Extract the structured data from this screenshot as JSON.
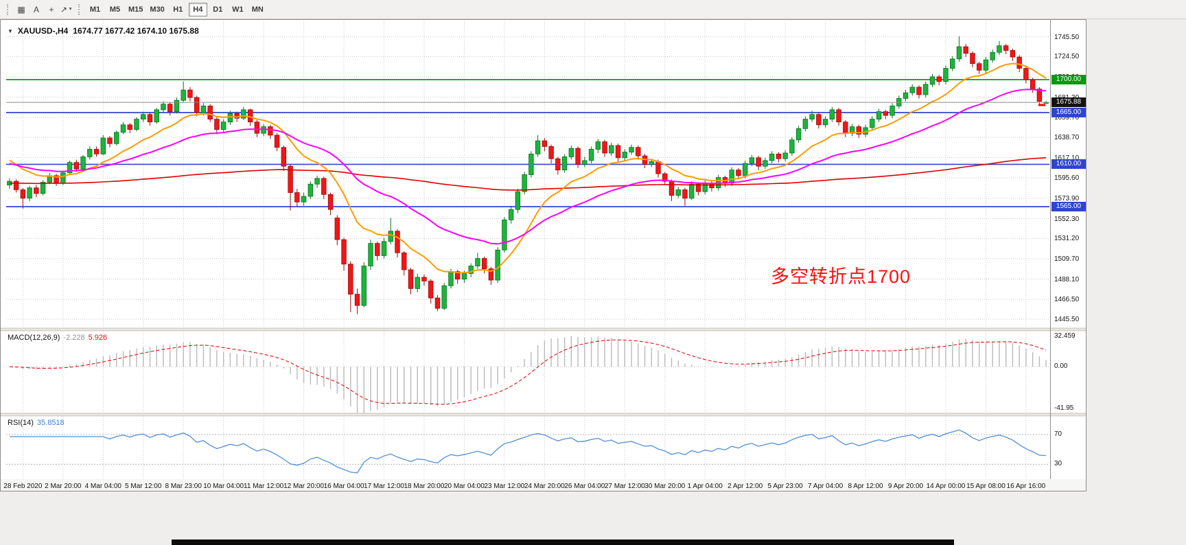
{
  "toolbar": {
    "left_icons": [
      {
        "name": "chart-grid-icon",
        "glyph": "▦"
      },
      {
        "name": "text-tool-icon",
        "glyph": "A"
      },
      {
        "name": "crosshair-icon",
        "glyph": "+"
      },
      {
        "name": "draw-tools-icon",
        "glyph": "↗",
        "caret": "▼"
      }
    ],
    "timeframes": [
      "M1",
      "M5",
      "M15",
      "M30",
      "H1",
      "H4",
      "D1",
      "W1",
      "MN"
    ],
    "active_timeframe": "H4"
  },
  "chart": {
    "title_marker": "▼",
    "title_symbol": "XAUUSD-,H4",
    "title_ohlc": "1674.77 1677.42 1674.10 1675.88",
    "annotation": {
      "text": "多空转折点1700",
      "color": "#fe1010"
    },
    "current_price": "1675.88",
    "current_price_value": 1675.88,
    "price_marker": {
      "price": 1673.0,
      "color": "#ff0000"
    },
    "colors": {
      "up_fill": "#1cb53a",
      "up_stroke": "#0a7022",
      "down_fill": "#f21616",
      "down_stroke": "#9c0b0b",
      "grid": "#c9c9c9",
      "current_line": "#8a8a8a",
      "tag_current_bg": "#131313",
      "macd_hist": "#b9b9b9",
      "macd_signal": "#e01010",
      "rsi_line": "#4f8fd9"
    },
    "hlines": [
      {
        "price": 1700.0,
        "label": "1700.00",
        "color": "#00a000",
        "tag_bg": "#089b08"
      },
      {
        "price": 1665.0,
        "label": "1665.00",
        "color": "#2f45cf",
        "tag_bg": "#2f45cf"
      },
      {
        "price": 1610.0,
        "label": "1610.00",
        "color": "#2f45cf",
        "tag_bg": "#2f45cf"
      },
      {
        "price": 1565.0,
        "label": "1565.00",
        "color": "#2f45cf",
        "tag_bg": "#2f45cf"
      }
    ],
    "y_axis_labels": [
      "1745.50",
      "1724.50",
      "1702.90",
      "1681.30",
      "1659.70",
      "1638.70",
      "1617.10",
      "1595.60",
      "1573.90",
      "1552.30",
      "1531.20",
      "1509.70",
      "1488.10",
      "1466.50",
      "1445.50"
    ]
  },
  "chart_data": {
    "type": "candlestick",
    "symbol": "XAUUSD",
    "timeframe": "H4",
    "y_range": [
      1436,
      1762
    ],
    "label_start_index": 2,
    "label_every": 6,
    "x_labels": [
      "28 Feb 2020",
      "2 Mar 20:00",
      "4 Mar 04:00",
      "5 Mar 12:00",
      "8 Mar 23:00",
      "10 Mar 04:00",
      "11 Mar 12:00",
      "12 Mar 20:00",
      "16 Mar 04:00",
      "17 Mar 12:00",
      "18 Mar 20:00",
      "20 Mar 04:00",
      "23 Mar 12:00",
      "24 Mar 20:00",
      "26 Mar 04:00",
      "27 Mar 12:00",
      "30 Mar 20:00",
      "1 Apr 04:00",
      "2 Apr 12:00",
      "5 Apr 23:00",
      "7 Apr 04:00",
      "8 Apr 12:00",
      "9 Apr 20:00",
      "14 Apr 00:00",
      "15 Apr 08:00",
      "16 Apr 16:00"
    ],
    "moving_averages": [
      {
        "period": 240,
        "seed": 1590,
        "color": "#dd0000",
        "width": 1.6
      },
      {
        "period": 13,
        "seed": 1618,
        "color": "#ff9c00",
        "width": 2
      },
      {
        "period": 34,
        "seed": 1612,
        "color": "#ff00ff",
        "width": 2
      }
    ],
    "candles": [
      [
        1588,
        1595,
        1584,
        1592
      ],
      [
        1592,
        1594,
        1580,
        1583
      ],
      [
        1583,
        1585,
        1563,
        1574
      ],
      [
        1574,
        1587,
        1571,
        1585
      ],
      [
        1585,
        1588,
        1575,
        1579
      ],
      [
        1579,
        1593,
        1577,
        1591
      ],
      [
        1591,
        1601,
        1589,
        1598
      ],
      [
        1598,
        1600,
        1587,
        1590
      ],
      [
        1590,
        1603,
        1588,
        1601
      ],
      [
        1601,
        1614,
        1599,
        1612
      ],
      [
        1612,
        1615,
        1602,
        1605
      ],
      [
        1605,
        1620,
        1603,
        1618
      ],
      [
        1618,
        1629,
        1615,
        1626
      ],
      [
        1626,
        1629,
        1618,
        1621
      ],
      [
        1621,
        1641,
        1620,
        1638
      ],
      [
        1638,
        1640,
        1628,
        1632
      ],
      [
        1632,
        1646,
        1630,
        1644
      ],
      [
        1644,
        1655,
        1642,
        1652
      ],
      [
        1652,
        1654,
        1643,
        1647
      ],
      [
        1647,
        1660,
        1645,
        1658
      ],
      [
        1658,
        1666,
        1655,
        1663
      ],
      [
        1663,
        1665,
        1651,
        1655
      ],
      [
        1655,
        1670,
        1653,
        1668
      ],
      [
        1668,
        1677,
        1665,
        1674
      ],
      [
        1674,
        1676,
        1662,
        1666
      ],
      [
        1666,
        1681,
        1664,
        1678
      ],
      [
        1678,
        1698,
        1676,
        1689
      ],
      [
        1689,
        1692,
        1677,
        1681
      ],
      [
        1681,
        1683,
        1661,
        1665
      ],
      [
        1665,
        1675,
        1662,
        1672
      ],
      [
        1672,
        1674,
        1655,
        1658
      ],
      [
        1658,
        1660,
        1642,
        1647
      ],
      [
        1647,
        1658,
        1644,
        1655
      ],
      [
        1655,
        1667,
        1652,
        1664
      ],
      [
        1664,
        1666,
        1655,
        1659
      ],
      [
        1659,
        1671,
        1657,
        1668
      ],
      [
        1668,
        1669,
        1651,
        1655
      ],
      [
        1655,
        1657,
        1639,
        1643
      ],
      [
        1643,
        1653,
        1640,
        1650
      ],
      [
        1650,
        1652,
        1637,
        1641
      ],
      [
        1641,
        1643,
        1624,
        1628
      ],
      [
        1628,
        1630,
        1603,
        1608
      ],
      [
        1608,
        1610,
        1561,
        1580
      ],
      [
        1580,
        1584,
        1565,
        1570
      ],
      [
        1570,
        1580,
        1566,
        1576
      ],
      [
        1576,
        1592,
        1573,
        1589
      ],
      [
        1589,
        1598,
        1585,
        1595
      ],
      [
        1595,
        1597,
        1573,
        1578
      ],
      [
        1578,
        1580,
        1556,
        1562
      ],
      [
        1553,
        1556,
        1524,
        1530
      ],
      [
        1530,
        1532,
        1497,
        1504
      ],
      [
        1504,
        1507,
        1453,
        1472
      ],
      [
        1472,
        1478,
        1451,
        1460
      ],
      [
        1460,
        1506,
        1458,
        1502
      ],
      [
        1502,
        1530,
        1498,
        1526
      ],
      [
        1526,
        1528,
        1508,
        1513
      ],
      [
        1513,
        1532,
        1510,
        1528
      ],
      [
        1528,
        1553,
        1525,
        1539
      ],
      [
        1539,
        1541,
        1511,
        1516
      ],
      [
        1516,
        1518,
        1492,
        1498
      ],
      [
        1498,
        1500,
        1472,
        1478
      ],
      [
        1478,
        1494,
        1474,
        1490
      ],
      [
        1490,
        1493,
        1481,
        1486
      ],
      [
        1486,
        1488,
        1462,
        1468
      ],
      [
        1468,
        1471,
        1454,
        1457
      ],
      [
        1457,
        1484,
        1455,
        1481
      ],
      [
        1481,
        1499,
        1478,
        1496
      ],
      [
        1496,
        1498,
        1483,
        1488
      ],
      [
        1488,
        1497,
        1484,
        1494
      ],
      [
        1494,
        1505,
        1490,
        1502
      ],
      [
        1502,
        1516,
        1499,
        1510
      ],
      [
        1510,
        1512,
        1494,
        1499
      ],
      [
        1499,
        1501,
        1482,
        1487
      ],
      [
        1487,
        1522,
        1484,
        1519
      ],
      [
        1519,
        1554,
        1516,
        1551
      ],
      [
        1551,
        1566,
        1547,
        1562
      ],
      [
        1562,
        1584,
        1558,
        1581
      ],
      [
        1581,
        1602,
        1578,
        1599
      ],
      [
        1599,
        1624,
        1596,
        1621
      ],
      [
        1621,
        1641,
        1618,
        1635
      ],
      [
        1635,
        1638,
        1624,
        1629
      ],
      [
        1629,
        1631,
        1611,
        1616
      ],
      [
        1616,
        1618,
        1599,
        1604
      ],
      [
        1604,
        1621,
        1601,
        1618
      ],
      [
        1618,
        1630,
        1615,
        1627
      ],
      [
        1627,
        1629,
        1606,
        1610
      ],
      [
        1610,
        1618,
        1607,
        1614
      ],
      [
        1614,
        1629,
        1611,
        1626
      ],
      [
        1626,
        1637,
        1622,
        1634
      ],
      [
        1634,
        1636,
        1618,
        1622
      ],
      [
        1622,
        1633,
        1619,
        1630
      ],
      [
        1630,
        1632,
        1613,
        1617
      ],
      [
        1617,
        1626,
        1614,
        1623
      ],
      [
        1623,
        1631,
        1620,
        1628
      ],
      [
        1628,
        1630,
        1615,
        1619
      ],
      [
        1619,
        1621,
        1606,
        1610
      ],
      [
        1610,
        1616,
        1607,
        1613
      ],
      [
        1613,
        1615,
        1596,
        1600
      ],
      [
        1600,
        1602,
        1588,
        1592
      ],
      [
        1592,
        1594,
        1571,
        1577
      ],
      [
        1577,
        1586,
        1574,
        1583
      ],
      [
        1583,
        1585,
        1566,
        1574
      ],
      [
        1574,
        1592,
        1572,
        1589
      ],
      [
        1589,
        1591,
        1577,
        1581
      ],
      [
        1581,
        1593,
        1578,
        1590
      ],
      [
        1590,
        1592,
        1581,
        1585
      ],
      [
        1585,
        1599,
        1582,
        1596
      ],
      [
        1596,
        1598,
        1586,
        1590
      ],
      [
        1590,
        1607,
        1587,
        1604
      ],
      [
        1604,
        1606,
        1594,
        1598
      ],
      [
        1598,
        1614,
        1595,
        1611
      ],
      [
        1611,
        1620,
        1608,
        1617
      ],
      [
        1617,
        1619,
        1604,
        1608
      ],
      [
        1608,
        1617,
        1605,
        1614
      ],
      [
        1614,
        1624,
        1611,
        1621
      ],
      [
        1621,
        1623,
        1612,
        1616
      ],
      [
        1616,
        1625,
        1613,
        1622
      ],
      [
        1622,
        1639,
        1619,
        1636
      ],
      [
        1636,
        1651,
        1633,
        1648
      ],
      [
        1648,
        1661,
        1645,
        1658
      ],
      [
        1658,
        1667,
        1655,
        1663
      ],
      [
        1663,
        1665,
        1648,
        1652
      ],
      [
        1652,
        1661,
        1649,
        1658
      ],
      [
        1658,
        1671,
        1655,
        1668
      ],
      [
        1668,
        1670,
        1651,
        1655
      ],
      [
        1655,
        1657,
        1639,
        1643
      ],
      [
        1643,
        1653,
        1640,
        1650
      ],
      [
        1650,
        1652,
        1638,
        1642
      ],
      [
        1642,
        1652,
        1639,
        1649
      ],
      [
        1649,
        1661,
        1646,
        1658
      ],
      [
        1658,
        1669,
        1655,
        1666
      ],
      [
        1666,
        1668,
        1658,
        1662
      ],
      [
        1662,
        1675,
        1659,
        1672
      ],
      [
        1672,
        1683,
        1669,
        1680
      ],
      [
        1680,
        1689,
        1677,
        1686
      ],
      [
        1686,
        1695,
        1683,
        1692
      ],
      [
        1692,
        1694,
        1680,
        1684
      ],
      [
        1684,
        1698,
        1681,
        1695
      ],
      [
        1695,
        1706,
        1692,
        1703
      ],
      [
        1703,
        1705,
        1694,
        1698
      ],
      [
        1698,
        1715,
        1695,
        1712
      ],
      [
        1712,
        1725,
        1709,
        1722
      ],
      [
        1722,
        1746,
        1719,
        1735
      ],
      [
        1735,
        1738,
        1724,
        1728
      ],
      [
        1728,
        1730,
        1713,
        1717
      ],
      [
        1717,
        1719,
        1706,
        1710
      ],
      [
        1710,
        1724,
        1707,
        1721
      ],
      [
        1721,
        1732,
        1718,
        1729
      ],
      [
        1729,
        1741,
        1726,
        1736
      ],
      [
        1736,
        1738,
        1727,
        1731
      ],
      [
        1731,
        1733,
        1720,
        1724
      ],
      [
        1724,
        1726,
        1708,
        1712
      ],
      [
        1712,
        1714,
        1696,
        1700
      ],
      [
        1700,
        1702,
        1686,
        1690
      ],
      [
        1690,
        1692,
        1674,
        1677
      ],
      [
        1674.8,
        1677.4,
        1674.1,
        1675.9
      ]
    ]
  },
  "macd": {
    "label": "MACD(12,26,9)",
    "value_main": "-2.228",
    "value_signal": "5.926",
    "params": {
      "fast": 12,
      "slow": 26,
      "signal": 9
    },
    "axis": {
      "top": "32.459",
      "zero": "0.00",
      "bottom": "-41.95"
    },
    "y_range": [
      -41.95,
      32.459
    ]
  },
  "rsi": {
    "label": "RSI(14)",
    "value": "35.8518",
    "period": 14,
    "levels": [
      "70",
      "30"
    ],
    "y_range": [
      10,
      95
    ]
  }
}
